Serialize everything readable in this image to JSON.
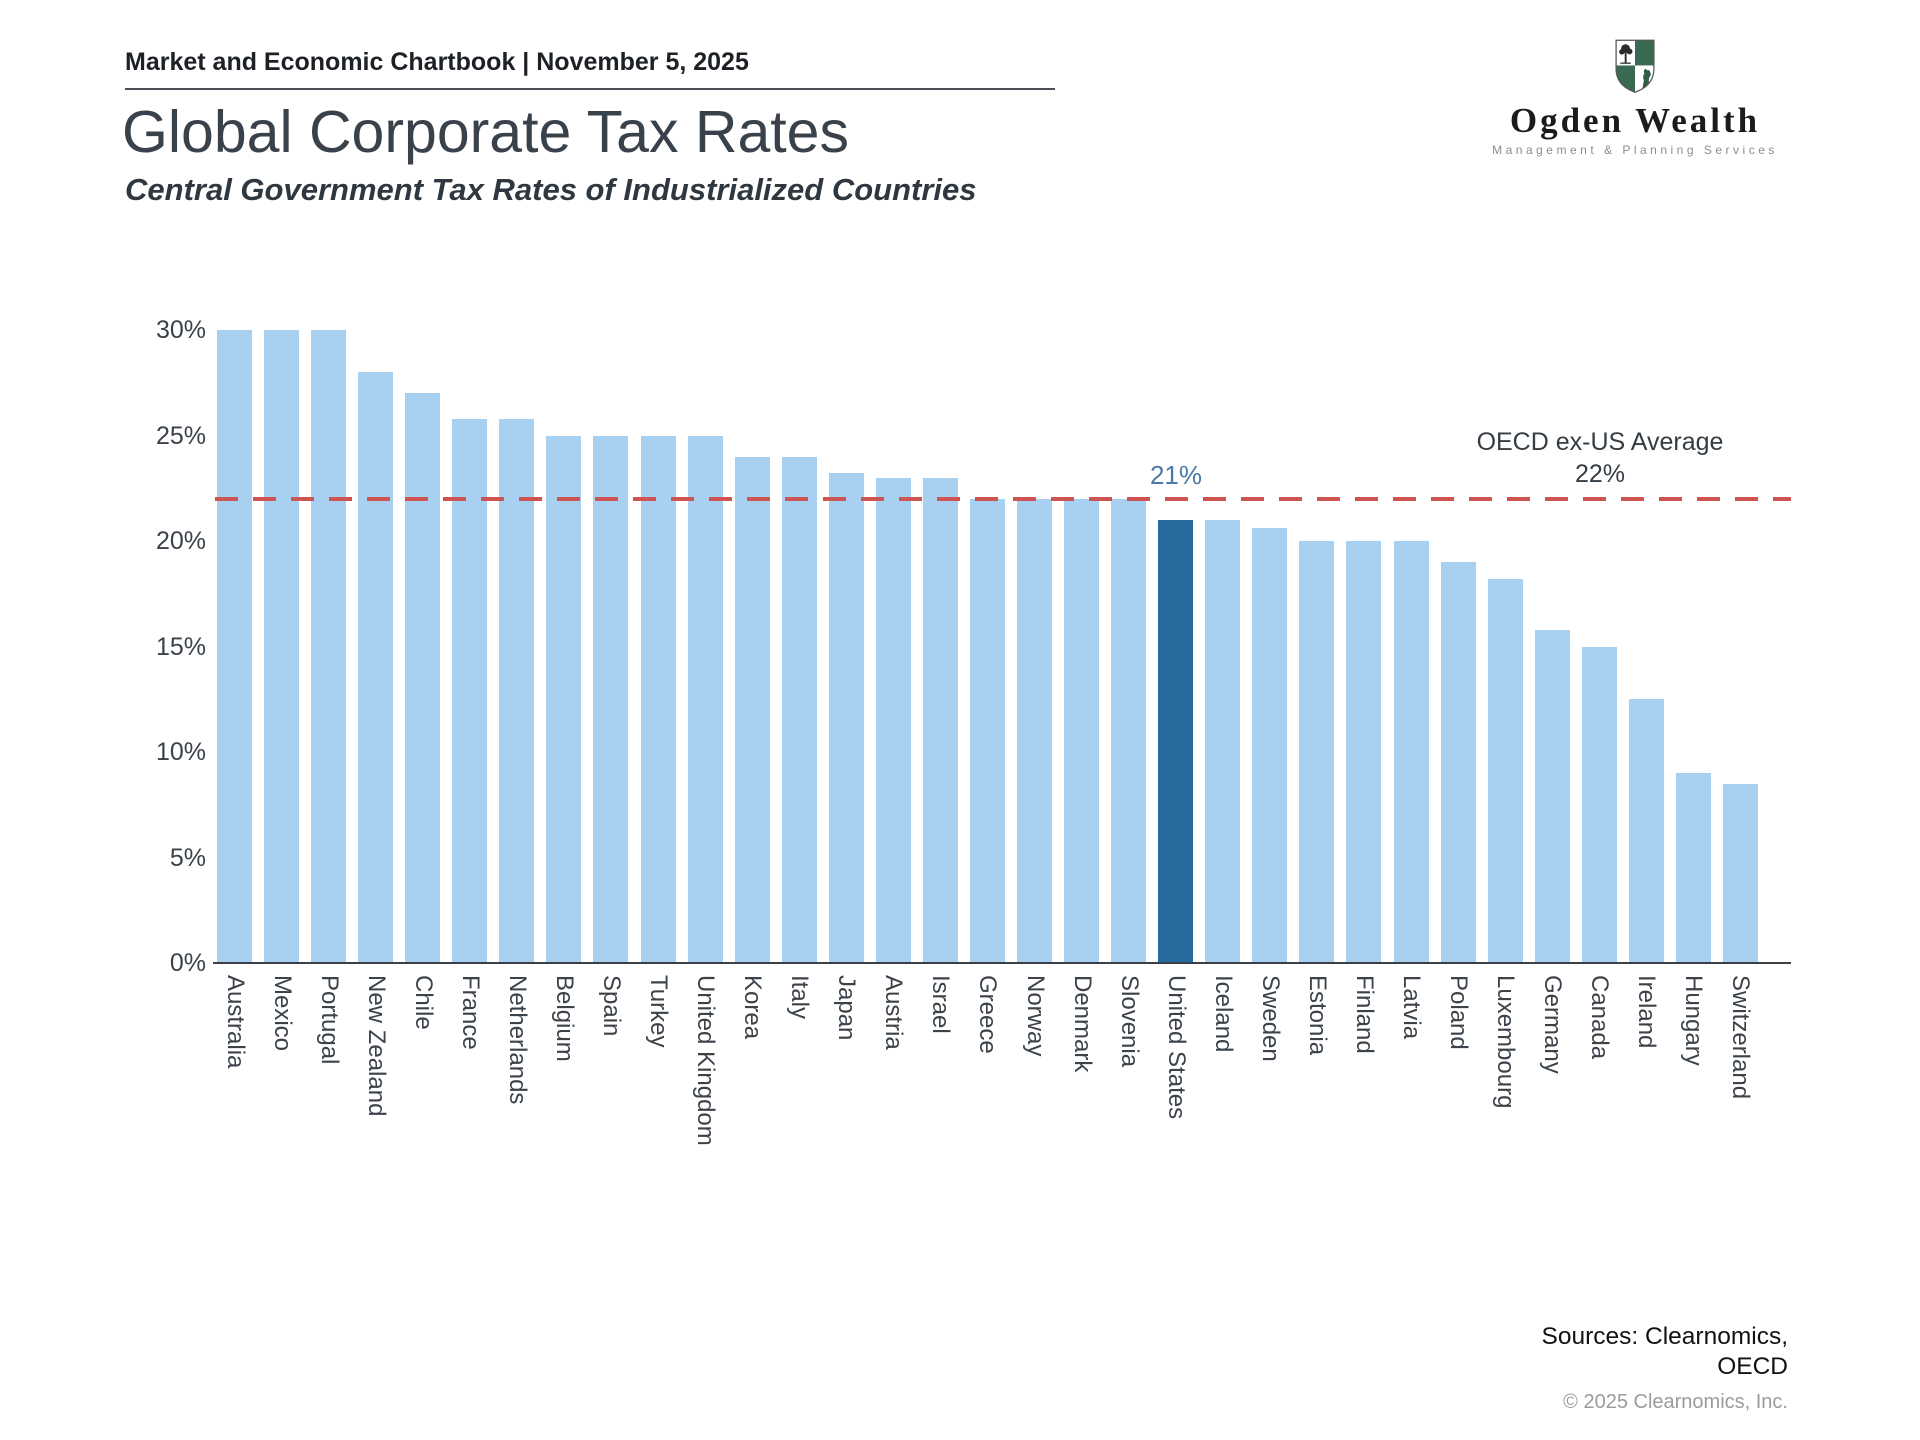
{
  "header": {
    "text": "Market and Economic Chartbook | November 5, 2025"
  },
  "title": "Global Corporate Tax Rates",
  "subtitle": "Central Government Tax Rates of Industrialized Countries",
  "logo": {
    "name": "Ogden Wealth",
    "tagline": "Management & Planning Services",
    "shield_green": "#3a6b52",
    "shield_dark": "#2b2b2b"
  },
  "chart_data": {
    "type": "bar",
    "title": "Global Corporate Tax Rates",
    "subtitle": "Central Government Tax Rates of Industrialized Countries",
    "unit": "%",
    "categories": [
      "Australia",
      "Mexico",
      "Portugal",
      "New Zealand",
      "Chile",
      "France",
      "Netherlands",
      "Belgium",
      "Spain",
      "Turkey",
      "United Kingdom",
      "Korea",
      "Italy",
      "Japan",
      "Austria",
      "Israel",
      "Greece",
      "Norway",
      "Denmark",
      "Slovenia",
      "United States",
      "Iceland",
      "Sweden",
      "Estonia",
      "Finland",
      "Latvia",
      "Poland",
      "Luxembourg",
      "Germany",
      "Canada",
      "Ireland",
      "Hungary",
      "Switzerland"
    ],
    "values": [
      30,
      30,
      30,
      28,
      27,
      25.8,
      25.8,
      25,
      25,
      25,
      25,
      24,
      24,
      23.2,
      23,
      23,
      22,
      22,
      22,
      22,
      21,
      21,
      20.6,
      20,
      20,
      20,
      19,
      18.2,
      15.8,
      15,
      12.5,
      9,
      8.5
    ],
    "ylim": [
      0,
      30
    ],
    "yticks": [
      "0%",
      "5%",
      "10%",
      "15%",
      "20%",
      "25%",
      "30%"
    ],
    "ytick_values": [
      0,
      5,
      10,
      15,
      20,
      25,
      30
    ],
    "grid": false,
    "legend": "none",
    "highlight_category": "United States",
    "highlight_value_label": "21%",
    "reference_line": {
      "value": 22,
      "label_line1": "OECD ex-US Average",
      "label_line2": "22%"
    },
    "colors": {
      "bar": "#a8d0f0",
      "bar_highlight": "#276b9e",
      "reference_line": "#cd5450",
      "highlight_label": "#4a7aa5",
      "axis_text": "#3b4249"
    }
  },
  "footer": {
    "sources_line1": "Sources: Clearnomics,",
    "sources_line2": "OECD",
    "copyright": "© 2025 Clearnomics, Inc."
  }
}
